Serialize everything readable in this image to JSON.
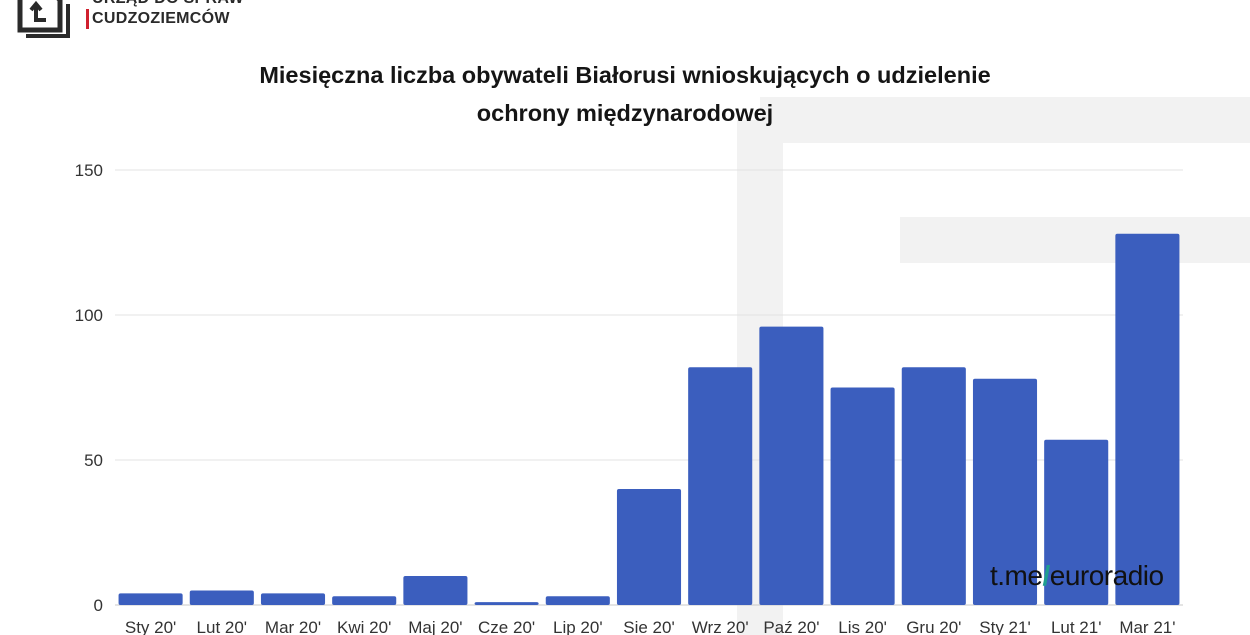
{
  "header": {
    "logo_line1": "URZĄD DO SPRAW",
    "logo_line2": "CUDZOZIEMCÓW",
    "logo_icon": "document-return-icon"
  },
  "chart_data": {
    "type": "bar",
    "title": "Miesięczna liczba obywateli Białorusi wnioskujących o udzielenie ochrony międzynarodowej",
    "title_lines": [
      "Miesięczna liczba obywateli Białorusi wnioskujących o udzielenie",
      "ochrony międzynarodowej"
    ],
    "categories": [
      "Sty 20'",
      "Lut 20'",
      "Mar 20'",
      "Kwi 20'",
      "Maj 20'",
      "Cze 20'",
      "Lip 20'",
      "Sie 20'",
      "Wrz 20'",
      "Paź 20'",
      "Lis 20'",
      "Gru 20'",
      "Sty 21'",
      "Lut 21'",
      "Mar 21'"
    ],
    "values": [
      4,
      5,
      4,
      3,
      10,
      1,
      3,
      40,
      82,
      96,
      75,
      82,
      78,
      57,
      128
    ],
    "xlabel": "",
    "ylabel": "",
    "ylim": [
      0,
      150
    ],
    "yticks": [
      0,
      50,
      100,
      150
    ],
    "grid": true,
    "bar_color": "#3b5ebe"
  },
  "watermark": {
    "prefix": "t.me",
    "slash": "/",
    "suffix": "euroradio",
    "slash_color": "#1f9e8f"
  }
}
